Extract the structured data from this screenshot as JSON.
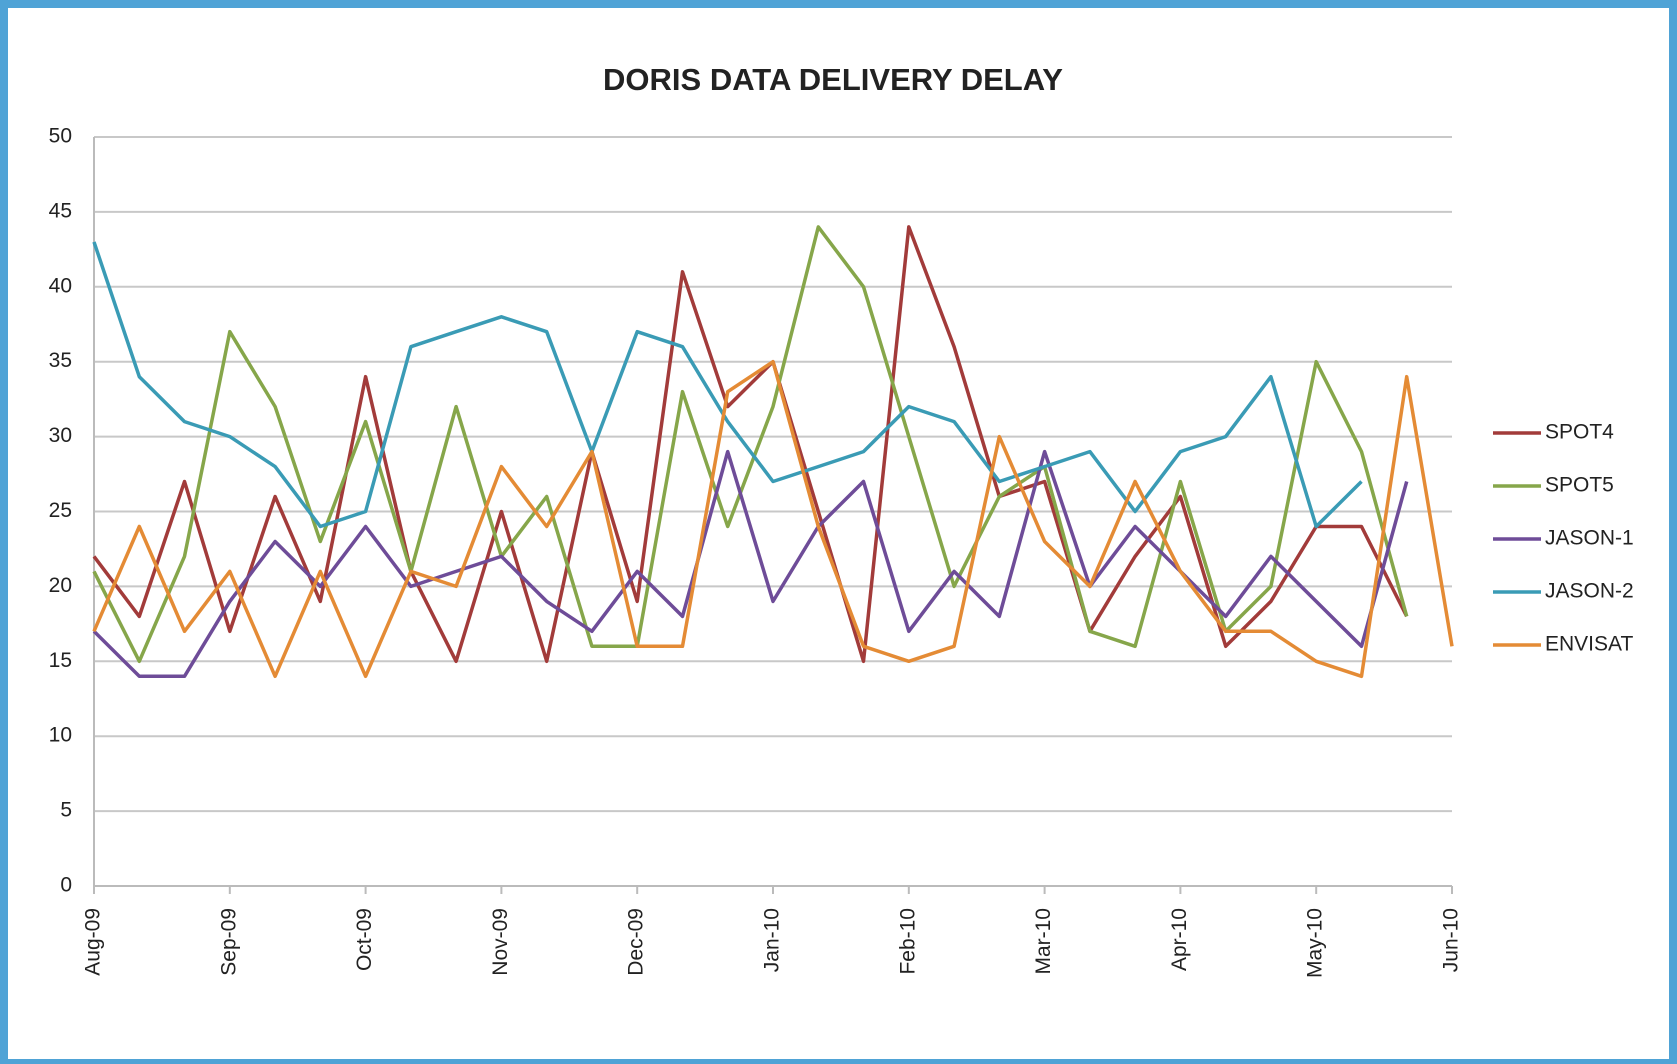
{
  "chart_data": {
    "type": "line",
    "title": "DORIS DATA DELIVERY DELAY",
    "categories": [
      "Aug-09",
      null,
      null,
      "Sep-09",
      null,
      null,
      "Oct-09",
      null,
      null,
      "Nov-09",
      null,
      null,
      "Dec-09",
      null,
      null,
      "Jan-10",
      null,
      null,
      "Feb-10",
      null,
      null,
      "Mar-10",
      null,
      null,
      "Apr-10",
      null,
      null,
      "May-10",
      null,
      null,
      "Jun-10"
    ],
    "series": [
      {
        "name": "SPOT4",
        "color": "#a23b3a",
        "values": [
          22,
          18,
          27,
          17,
          26,
          19,
          34,
          21,
          15,
          25,
          15,
          29,
          19,
          41,
          32,
          35,
          25,
          15,
          44,
          36,
          26,
          27,
          17,
          22,
          26,
          16,
          19,
          24,
          24,
          18,
          null
        ]
      },
      {
        "name": "SPOT5",
        "color": "#86a64a",
        "values": [
          21,
          15,
          22,
          37,
          32,
          23,
          31,
          21,
          32,
          22,
          26,
          16,
          16,
          33,
          24,
          32,
          44,
          40,
          30,
          20,
          26,
          28,
          17,
          16,
          27,
          17,
          20,
          35,
          29,
          18,
          null
        ]
      },
      {
        "name": "JASON-1",
        "color": "#6e4c98",
        "values": [
          17,
          14,
          14,
          19,
          23,
          20,
          24,
          20,
          21,
          22,
          19,
          17,
          21,
          18,
          29,
          19,
          24,
          27,
          17,
          21,
          18,
          29,
          20,
          24,
          21,
          18,
          22,
          19,
          16,
          27,
          null
        ]
      },
      {
        "name": "JASON-2",
        "color": "#3a9bb5",
        "values": [
          43,
          34,
          31,
          30,
          28,
          24,
          25,
          36,
          37,
          38,
          37,
          29,
          37,
          36,
          31,
          27,
          28,
          29,
          32,
          31,
          27,
          28,
          29,
          25,
          29,
          30,
          34,
          24,
          27,
          null,
          null
        ]
      },
      {
        "name": "ENVISAT",
        "color": "#e48b35",
        "values": [
          17,
          24,
          17,
          21,
          14,
          21,
          14,
          21,
          20,
          28,
          24,
          29,
          16,
          16,
          33,
          35,
          24,
          16,
          15,
          16,
          30,
          23,
          20,
          27,
          21,
          17,
          17,
          15,
          14,
          34,
          16
        ]
      }
    ],
    "ylim": [
      0,
      50
    ],
    "yticks": [
      0,
      5,
      10,
      15,
      20,
      25,
      30,
      35,
      40,
      45,
      50
    ],
    "grid": true,
    "legend": "right"
  }
}
